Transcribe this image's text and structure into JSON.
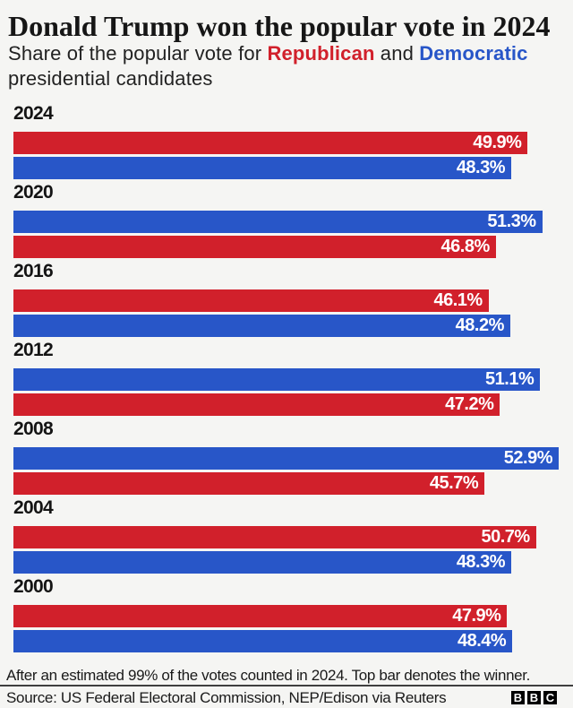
{
  "title": "Donald Trump won the popular vote in 2024",
  "subtitle": {
    "prefix": "Share of the popular vote for ",
    "republican": "Republican",
    "and": " and ",
    "democratic": "Democratic",
    "suffix": " presidential candidates"
  },
  "colors": {
    "republican": "#d1202b",
    "democratic": "#2856c8",
    "background": "#f5f5f3",
    "bar_label": "#ffffff"
  },
  "chart_data": {
    "type": "bar",
    "orientation": "horizontal",
    "unit": "%",
    "xlim": [
      0,
      52.9
    ],
    "note": "Top bar denotes the winner",
    "groups": [
      {
        "year": "2024",
        "bars": [
          {
            "party": "republican",
            "value": 49.9,
            "label": "49.9%"
          },
          {
            "party": "democratic",
            "value": 48.3,
            "label": "48.3%"
          }
        ]
      },
      {
        "year": "2020",
        "bars": [
          {
            "party": "democratic",
            "value": 51.3,
            "label": "51.3%"
          },
          {
            "party": "republican",
            "value": 46.8,
            "label": "46.8%"
          }
        ]
      },
      {
        "year": "2016",
        "bars": [
          {
            "party": "republican",
            "value": 46.1,
            "label": "46.1%"
          },
          {
            "party": "democratic",
            "value": 48.2,
            "label": "48.2%"
          }
        ]
      },
      {
        "year": "2012",
        "bars": [
          {
            "party": "democratic",
            "value": 51.1,
            "label": "51.1%"
          },
          {
            "party": "republican",
            "value": 47.2,
            "label": "47.2%"
          }
        ]
      },
      {
        "year": "2008",
        "bars": [
          {
            "party": "democratic",
            "value": 52.9,
            "label": "52.9%"
          },
          {
            "party": "republican",
            "value": 45.7,
            "label": "45.7%"
          }
        ]
      },
      {
        "year": "2004",
        "bars": [
          {
            "party": "republican",
            "value": 50.7,
            "label": "50.7%"
          },
          {
            "party": "democratic",
            "value": 48.3,
            "label": "48.3%"
          }
        ]
      },
      {
        "year": "2000",
        "bars": [
          {
            "party": "republican",
            "value": 47.9,
            "label": "47.9%"
          },
          {
            "party": "democratic",
            "value": 48.4,
            "label": "48.4%"
          }
        ]
      }
    ]
  },
  "footnote": "After an estimated 99% of the votes counted in 2024. Top bar denotes the winner.",
  "source": "Source: US Federal Electoral Commission, NEP/Edison via Reuters",
  "logo": {
    "letters": [
      "B",
      "B",
      "C"
    ]
  }
}
